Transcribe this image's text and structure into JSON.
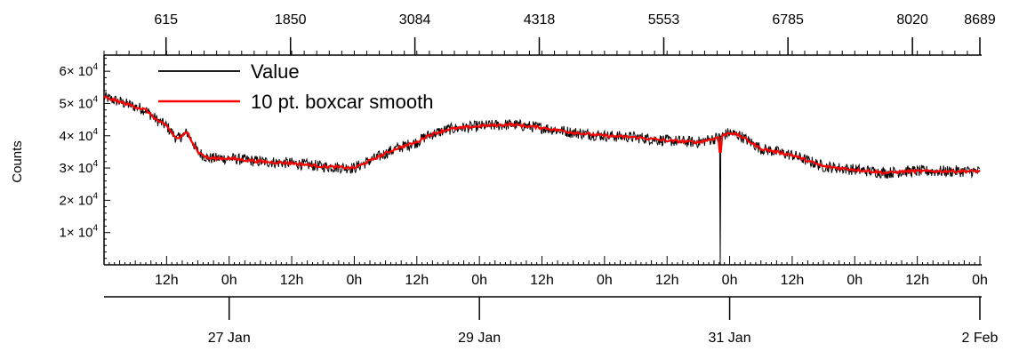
{
  "chart_data": {
    "type": "line",
    "ylabel": "Counts",
    "ylim": [
      0,
      65000
    ],
    "y_ticks": [
      {
        "value": 10000,
        "mantissa": "1",
        "label_x": "× 10",
        "exp": "4"
      },
      {
        "value": 20000,
        "mantissa": "2",
        "label_x": "× 10",
        "exp": "4"
      },
      {
        "value": 30000,
        "mantissa": "3",
        "label_x": "× 10",
        "exp": "4"
      },
      {
        "value": 40000,
        "mantissa": "4",
        "label_x": "× 10",
        "exp": "4"
      },
      {
        "value": 50000,
        "mantissa": "5",
        "label_x": "× 10",
        "exp": "4"
      },
      {
        "value": 60000,
        "mantissa": "6",
        "label_x": "× 10",
        "exp": "4"
      }
    ],
    "top_axis": {
      "range": [
        0,
        8689
      ],
      "ticks": [
        615,
        1850,
        3084,
        4318,
        5553,
        6785,
        8020,
        8689
      ]
    },
    "time_axis": {
      "range_hours": [
        0,
        168
      ],
      "hour_ticks": [
        {
          "h": 12,
          "label": "12h"
        },
        {
          "h": 24,
          "label": "0h"
        },
        {
          "h": 36,
          "label": "12h"
        },
        {
          "h": 48,
          "label": "0h"
        },
        {
          "h": 60,
          "label": "12h"
        },
        {
          "h": 72,
          "label": "0h"
        },
        {
          "h": 84,
          "label": "12h"
        },
        {
          "h": 96,
          "label": "0h"
        },
        {
          "h": 108,
          "label": "12h"
        },
        {
          "h": 120,
          "label": "0h"
        },
        {
          "h": 132,
          "label": "12h"
        },
        {
          "h": 144,
          "label": "0h"
        },
        {
          "h": 156,
          "label": "12h"
        },
        {
          "h": 168,
          "label": "0h"
        }
      ],
      "date_ticks": [
        {
          "h": 24,
          "label": "27 Jan"
        },
        {
          "h": 72,
          "label": "29 Jan"
        },
        {
          "h": 120,
          "label": "31 Jan"
        },
        {
          "h": 168,
          "label": "2 Feb"
        }
      ]
    },
    "legend_position": "top-left",
    "series": [
      {
        "name": "Value",
        "color": "#000000",
        "noise": 1800,
        "dropout": {
          "x": 118.2,
          "y": 0
        },
        "points": [
          [
            0,
            52000
          ],
          [
            4,
            50000
          ],
          [
            8,
            48000
          ],
          [
            10,
            45000
          ],
          [
            12,
            43000
          ],
          [
            14,
            39000
          ],
          [
            16,
            41000
          ],
          [
            18,
            35000
          ],
          [
            20,
            33000
          ],
          [
            24,
            33000
          ],
          [
            30,
            32000
          ],
          [
            36,
            31500
          ],
          [
            42,
            30500
          ],
          [
            48,
            30000
          ],
          [
            52,
            33000
          ],
          [
            56,
            36000
          ],
          [
            60,
            38000
          ],
          [
            62,
            40000
          ],
          [
            66,
            42000
          ],
          [
            72,
            43000
          ],
          [
            78,
            43500
          ],
          [
            84,
            42500
          ],
          [
            90,
            41000
          ],
          [
            96,
            40000
          ],
          [
            102,
            39500
          ],
          [
            108,
            38500
          ],
          [
            114,
            38000
          ],
          [
            118,
            39500
          ],
          [
            120,
            41000
          ],
          [
            122,
            40000
          ],
          [
            126,
            36000
          ],
          [
            132,
            34000
          ],
          [
            138,
            30500
          ],
          [
            144,
            29500
          ],
          [
            150,
            28500
          ],
          [
            154,
            29000
          ],
          [
            160,
            29000
          ],
          [
            168,
            29000
          ]
        ]
      },
      {
        "name": "10 pt. boxcar smooth",
        "color": "#ff0000",
        "noise": 400,
        "dropout": {
          "x": 118.2,
          "y": 35000
        },
        "points": [
          [
            0,
            52000
          ],
          [
            4,
            50000
          ],
          [
            8,
            48000
          ],
          [
            10,
            45000
          ],
          [
            12,
            43000
          ],
          [
            14,
            39000
          ],
          [
            16,
            41000
          ],
          [
            18,
            35000
          ],
          [
            20,
            33000
          ],
          [
            24,
            33000
          ],
          [
            30,
            32000
          ],
          [
            36,
            31500
          ],
          [
            42,
            30500
          ],
          [
            48,
            30000
          ],
          [
            52,
            33000
          ],
          [
            56,
            36000
          ],
          [
            60,
            38000
          ],
          [
            62,
            40000
          ],
          [
            66,
            42000
          ],
          [
            72,
            43000
          ],
          [
            78,
            43500
          ],
          [
            84,
            42500
          ],
          [
            90,
            41000
          ],
          [
            96,
            40000
          ],
          [
            102,
            39500
          ],
          [
            108,
            38500
          ],
          [
            114,
            38000
          ],
          [
            118,
            39500
          ],
          [
            120,
            41000
          ],
          [
            122,
            40000
          ],
          [
            126,
            36000
          ],
          [
            132,
            34000
          ],
          [
            138,
            30500
          ],
          [
            144,
            29500
          ],
          [
            150,
            28500
          ],
          [
            154,
            29000
          ],
          [
            160,
            29000
          ],
          [
            168,
            29000
          ]
        ]
      }
    ]
  }
}
